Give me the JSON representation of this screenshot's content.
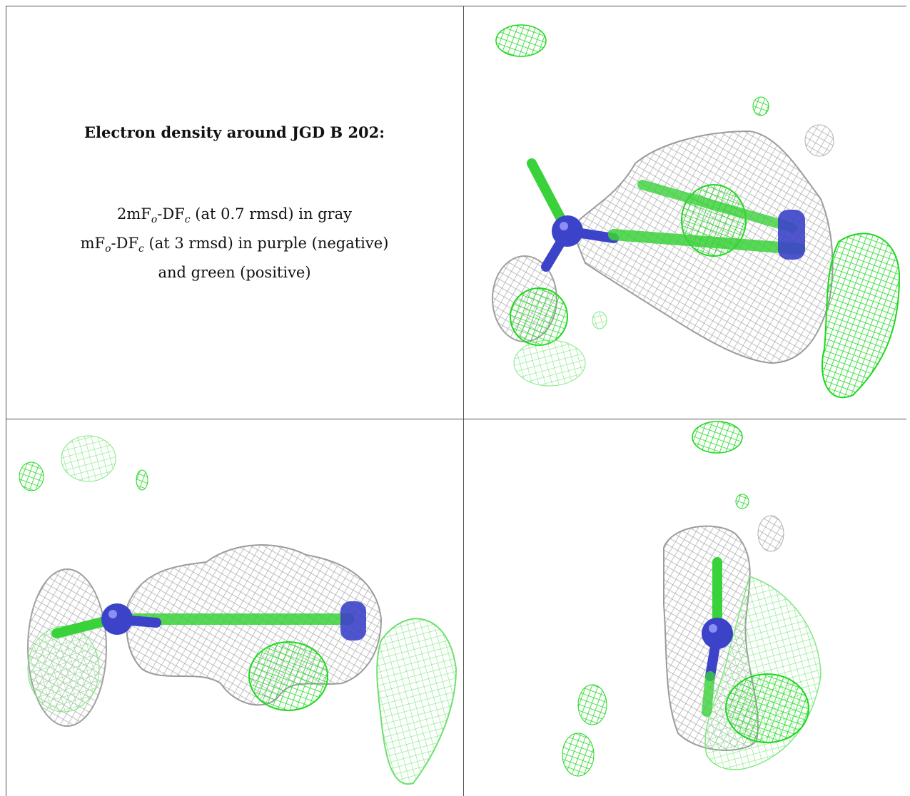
{
  "caption": {
    "title": "Electron density around JGD B 202:",
    "map1": {
      "name": "2mF",
      "sub1": "o",
      "mid": "-DF",
      "sub2": "c",
      "rest": " (at 0.7 rmsd) in gray"
    },
    "map2": {
      "name": "mF",
      "sub1": "o",
      "mid": "-DF",
      "sub2": "c",
      "rest": " (at 3 rmsd) in purple (negative)"
    },
    "map2_cont": "and green (positive)"
  },
  "colors": {
    "gray_mesh": "#b8b8b8",
    "green_mesh": "#22e022",
    "atom_blue": "#3c43c8",
    "bond_green": "#3ad23a"
  },
  "panels": [
    {
      "id": "panel-top-right",
      "view": "side"
    },
    {
      "id": "panel-bottom-left",
      "view": "edge-on"
    },
    {
      "id": "panel-bottom-right",
      "view": "end-on"
    }
  ]
}
